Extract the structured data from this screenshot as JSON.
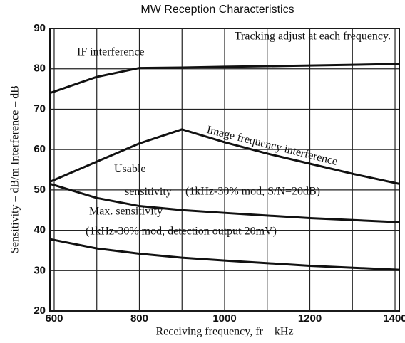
{
  "chart_data": {
    "type": "line",
    "title": "MW Reception Characteristics",
    "x_label": "Receiving frequency, fr  –  kHz",
    "y_label": "Sensitivity  –  dB/m   Interference  –  dB",
    "xlim": [
      590,
      1410
    ],
    "xticks": [
      600,
      800,
      1000,
      1200,
      1400
    ],
    "xgrid_minor": [
      700,
      900,
      1100,
      1300
    ],
    "ylim": [
      20,
      90
    ],
    "yticks": [
      20,
      30,
      40,
      50,
      60,
      70,
      80,
      90
    ],
    "grid": true,
    "annotations": [
      "Tracking adjust at each frequency.",
      "(1kHz-30% mod, S/N=20dB)",
      "(1kHz-30% mod, detection output 20mV)"
    ],
    "series": [
      {
        "name": "IF interference",
        "color": "#111111",
        "x": [
          590,
          700,
          800,
          900,
          1000,
          1200,
          1410
        ],
        "values": [
          74,
          78,
          80.2,
          80.3,
          80.5,
          80.8,
          81.2
        ]
      },
      {
        "name": "Image frequency interference",
        "color": "#111111",
        "x": [
          590,
          700,
          800,
          900,
          1000,
          1100,
          1200,
          1300,
          1410
        ],
        "values": [
          52,
          57,
          61.5,
          65,
          61.8,
          59,
          56.5,
          54,
          51.5
        ]
      },
      {
        "name": "Usable sensitivity",
        "color": "#111111",
        "x": [
          590,
          700,
          800,
          900,
          1000,
          1200,
          1410
        ],
        "values": [
          51.5,
          48,
          46,
          45,
          44.3,
          43,
          42
        ]
      },
      {
        "name": "Max. sensitivity",
        "color": "#111111",
        "x": [
          590,
          700,
          800,
          900,
          1000,
          1200,
          1410
        ],
        "values": [
          37.8,
          35.5,
          34.2,
          33.2,
          32.5,
          31.2,
          30.2
        ]
      }
    ]
  }
}
